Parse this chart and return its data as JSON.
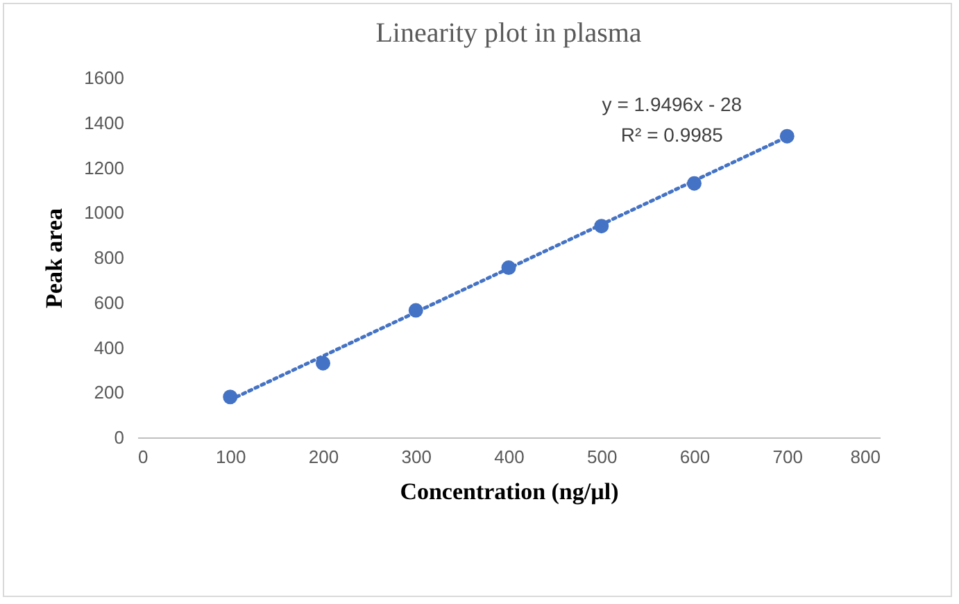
{
  "chart_data": {
    "type": "scatter",
    "title": "Linearity plot in plasma",
    "xlabel": "Concentration (ng/µl)",
    "ylabel": "Peak area",
    "x": [
      100,
      200,
      300,
      400,
      500,
      600,
      700
    ],
    "series": [
      {
        "color": "#4472c4",
        "marker": "circle",
        "values": [
          180,
          330,
          565,
          755,
          940,
          1130,
          1340
        ]
      },
      {
        "type": "line",
        "color": "#4472c4",
        "x": [
          100,
          700
        ],
        "values": [
          167,
          1337
        ],
        "line_style": "dotted",
        "marker": "none"
      }
    ],
    "annotations": [
      "y = 1.9496x - 28",
      "R² = 0.9985"
    ],
    "xlim": [
      0,
      800
    ],
    "xticks": [
      0,
      100,
      200,
      300,
      400,
      500,
      600,
      700,
      800
    ],
    "ylim": [
      0,
      1600
    ],
    "yticks": [
      0,
      200,
      400,
      600,
      800,
      1000,
      1200,
      1400,
      1600
    ],
    "grid": false
  }
}
